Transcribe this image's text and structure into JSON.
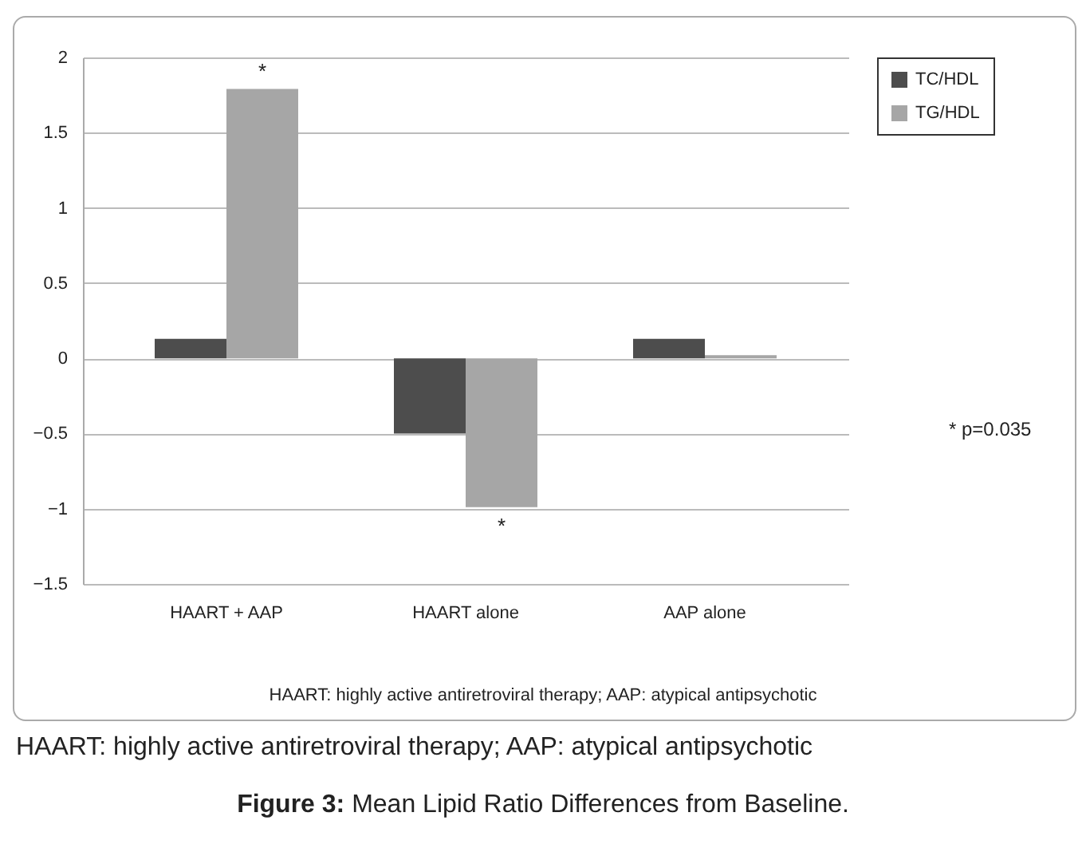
{
  "chart_data": {
    "type": "bar",
    "title": "Figure 3: Mean Lipid Ratio Differences from Baseline.",
    "categories": [
      "HAART + AAP",
      "HAART alone",
      "AAP alone"
    ],
    "series": [
      {
        "name": "TC/HDL",
        "color": "#4d4d4d",
        "values": [
          0.13,
          -0.5,
          0.13
        ]
      },
      {
        "name": "TG/HDL",
        "color": "#a6a6a6",
        "values": [
          1.79,
          -0.99,
          0.02
        ]
      }
    ],
    "ylim": [
      -1.5,
      2
    ],
    "yticks": [
      -1.5,
      -1,
      -0.5,
      0,
      0.5,
      1,
      1.5,
      2
    ],
    "grid": "y",
    "legend": "right",
    "annotations": [
      "*",
      "*",
      "* p=0.035",
      "HAART: highly active antiretroviral therapy; AAP: atypical antipsychotic",
      "HAART: highly active antiretroviral therapy; AAP: atypical antipsychotic"
    ]
  }
}
